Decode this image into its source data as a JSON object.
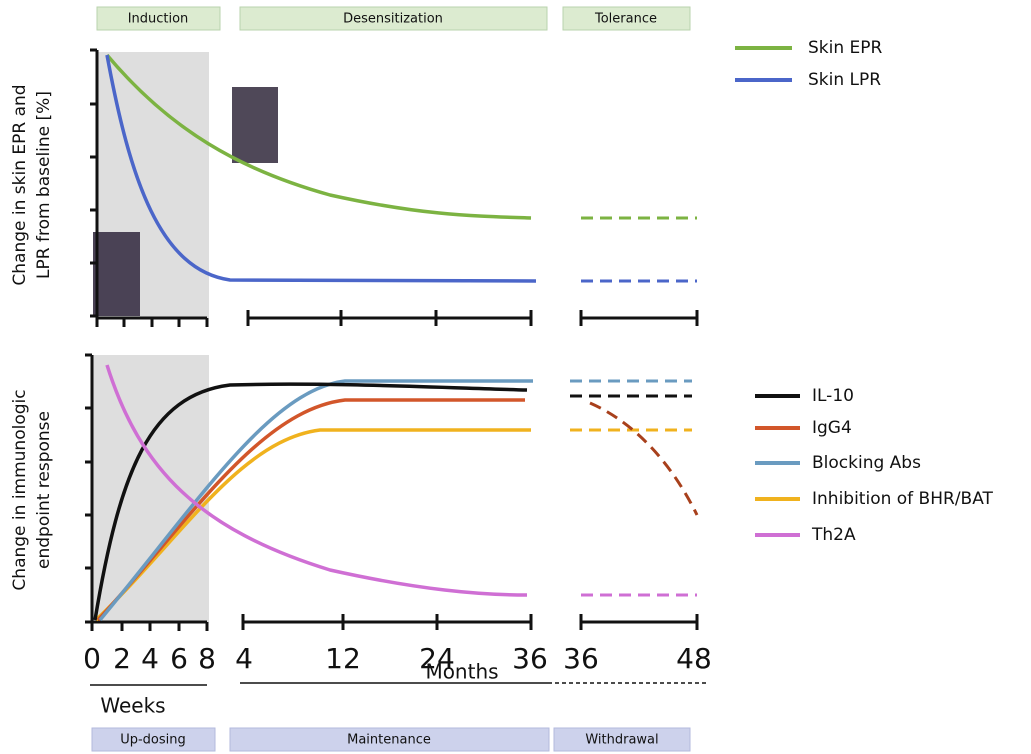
{
  "phases_top": [
    "Induction",
    "Desensitization",
    "Tolerance"
  ],
  "phases_bottom": [
    "Up-dosing",
    "Maintenance",
    "Withdrawal"
  ],
  "top_panel": {
    "y_label": [
      "Change in skin EPR and",
      "LPR from baseline [%]"
    ],
    "legend": [
      "Skin EPR",
      "Skin LPR"
    ]
  },
  "bottom_panel": {
    "y_label": [
      "Change in immunologic",
      "endpoint response"
    ],
    "legend": [
      "IL-10",
      "IgG4",
      "Blocking Abs",
      "Inhibition of BHR/BAT",
      "Th2A"
    ]
  },
  "x_axis": {
    "weeks_ticks": [
      "0",
      "2",
      "4",
      "6",
      "8"
    ],
    "months_ticks": [
      "4",
      "12",
      "24",
      "36"
    ],
    "tolerance_ticks": [
      "36",
      "48"
    ],
    "weeks_label": "Weeks",
    "months_label": "Months"
  }
}
